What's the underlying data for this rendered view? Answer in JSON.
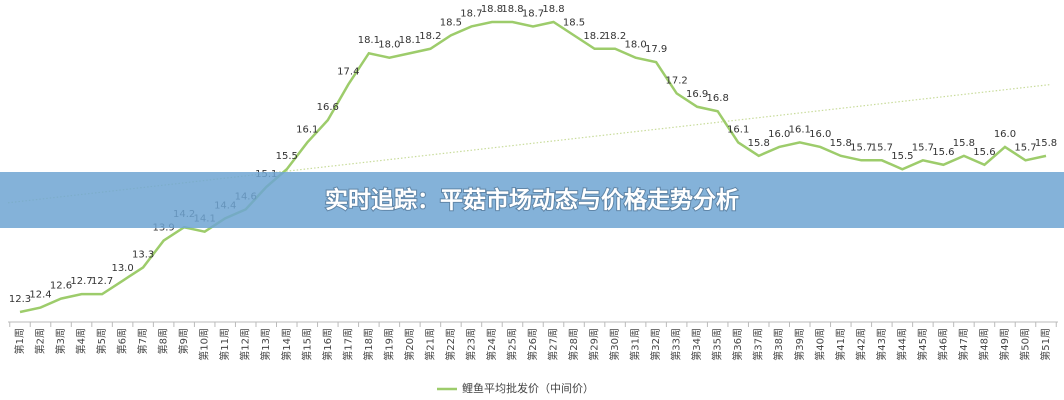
{
  "chart_data": {
    "type": "line",
    "title": "实时追踪：平菇市场动态与价格走势分析",
    "categories": [
      "第1周",
      "第2周",
      "第3周",
      "第4周",
      "第5周",
      "第6周",
      "第7周",
      "第8周",
      "第9周",
      "第10周",
      "第11周",
      "第12周",
      "第13周",
      "第14周",
      "第15周",
      "第16周",
      "第17周",
      "第18周",
      "第19周",
      "第20周",
      "第21周",
      "第22周",
      "第23周",
      "第24周",
      "第25周",
      "第26周",
      "第27周",
      "第28周",
      "第29周",
      "第30周",
      "第31周",
      "第32周",
      "第33周",
      "第34周",
      "第35周",
      "第36周",
      "第37周",
      "第38周",
      "第39周",
      "第40周",
      "第41周",
      "第42周",
      "第43周",
      "第44周",
      "第45周",
      "第46周",
      "第47周",
      "第48周",
      "第49周",
      "第50周",
      "第51周"
    ],
    "series": [
      {
        "name": "鲤鱼平均批发价（中间价）",
        "color": "#9dcc6b",
        "values": [
          12.3,
          12.4,
          12.6,
          12.7,
          12.7,
          13.0,
          13.3,
          13.9,
          14.2,
          14.1,
          14.4,
          14.6,
          15.1,
          15.5,
          16.1,
          16.6,
          17.4,
          18.1,
          18.0,
          18.1,
          18.2,
          18.5,
          18.7,
          18.8,
          18.8,
          18.7,
          18.8,
          18.5,
          18.2,
          18.2,
          18.0,
          17.9,
          17.2,
          16.9,
          16.8,
          16.1,
          15.8,
          16.0,
          16.1,
          16.0,
          15.8,
          15.7,
          15.7,
          15.5,
          15.7,
          15.6,
          15.8,
          15.6,
          16.0,
          15.7,
          15.8
        ],
        "value_labels": [
          "12.3",
          "12.4",
          "12.6",
          "12.7",
          "12.7",
          "13.0",
          "13.3",
          "13.9",
          "14.2",
          "14.1",
          "14.4",
          "14.6",
          "15.1",
          "15.5",
          "16.1",
          "16.6",
          "17.4",
          "18.1",
          "18.0",
          "18.1",
          "18.2",
          "18.5",
          "18.7",
          "18.8",
          "18.8",
          "18.7",
          "18.8",
          "18.5",
          "18.2",
          "18.2",
          "18.0",
          "17.9",
          "17.2",
          "16.9",
          "16.8",
          "16.1",
          "15.8",
          "16.0",
          "16.1",
          "16.0",
          "15.8",
          "15.7",
          "15.7",
          "15.5",
          "15.7",
          "15.6",
          "15.8",
          "15.6",
          "16.0",
          "15.7",
          "15.8"
        ]
      }
    ],
    "trendline": "linear"
  }
}
